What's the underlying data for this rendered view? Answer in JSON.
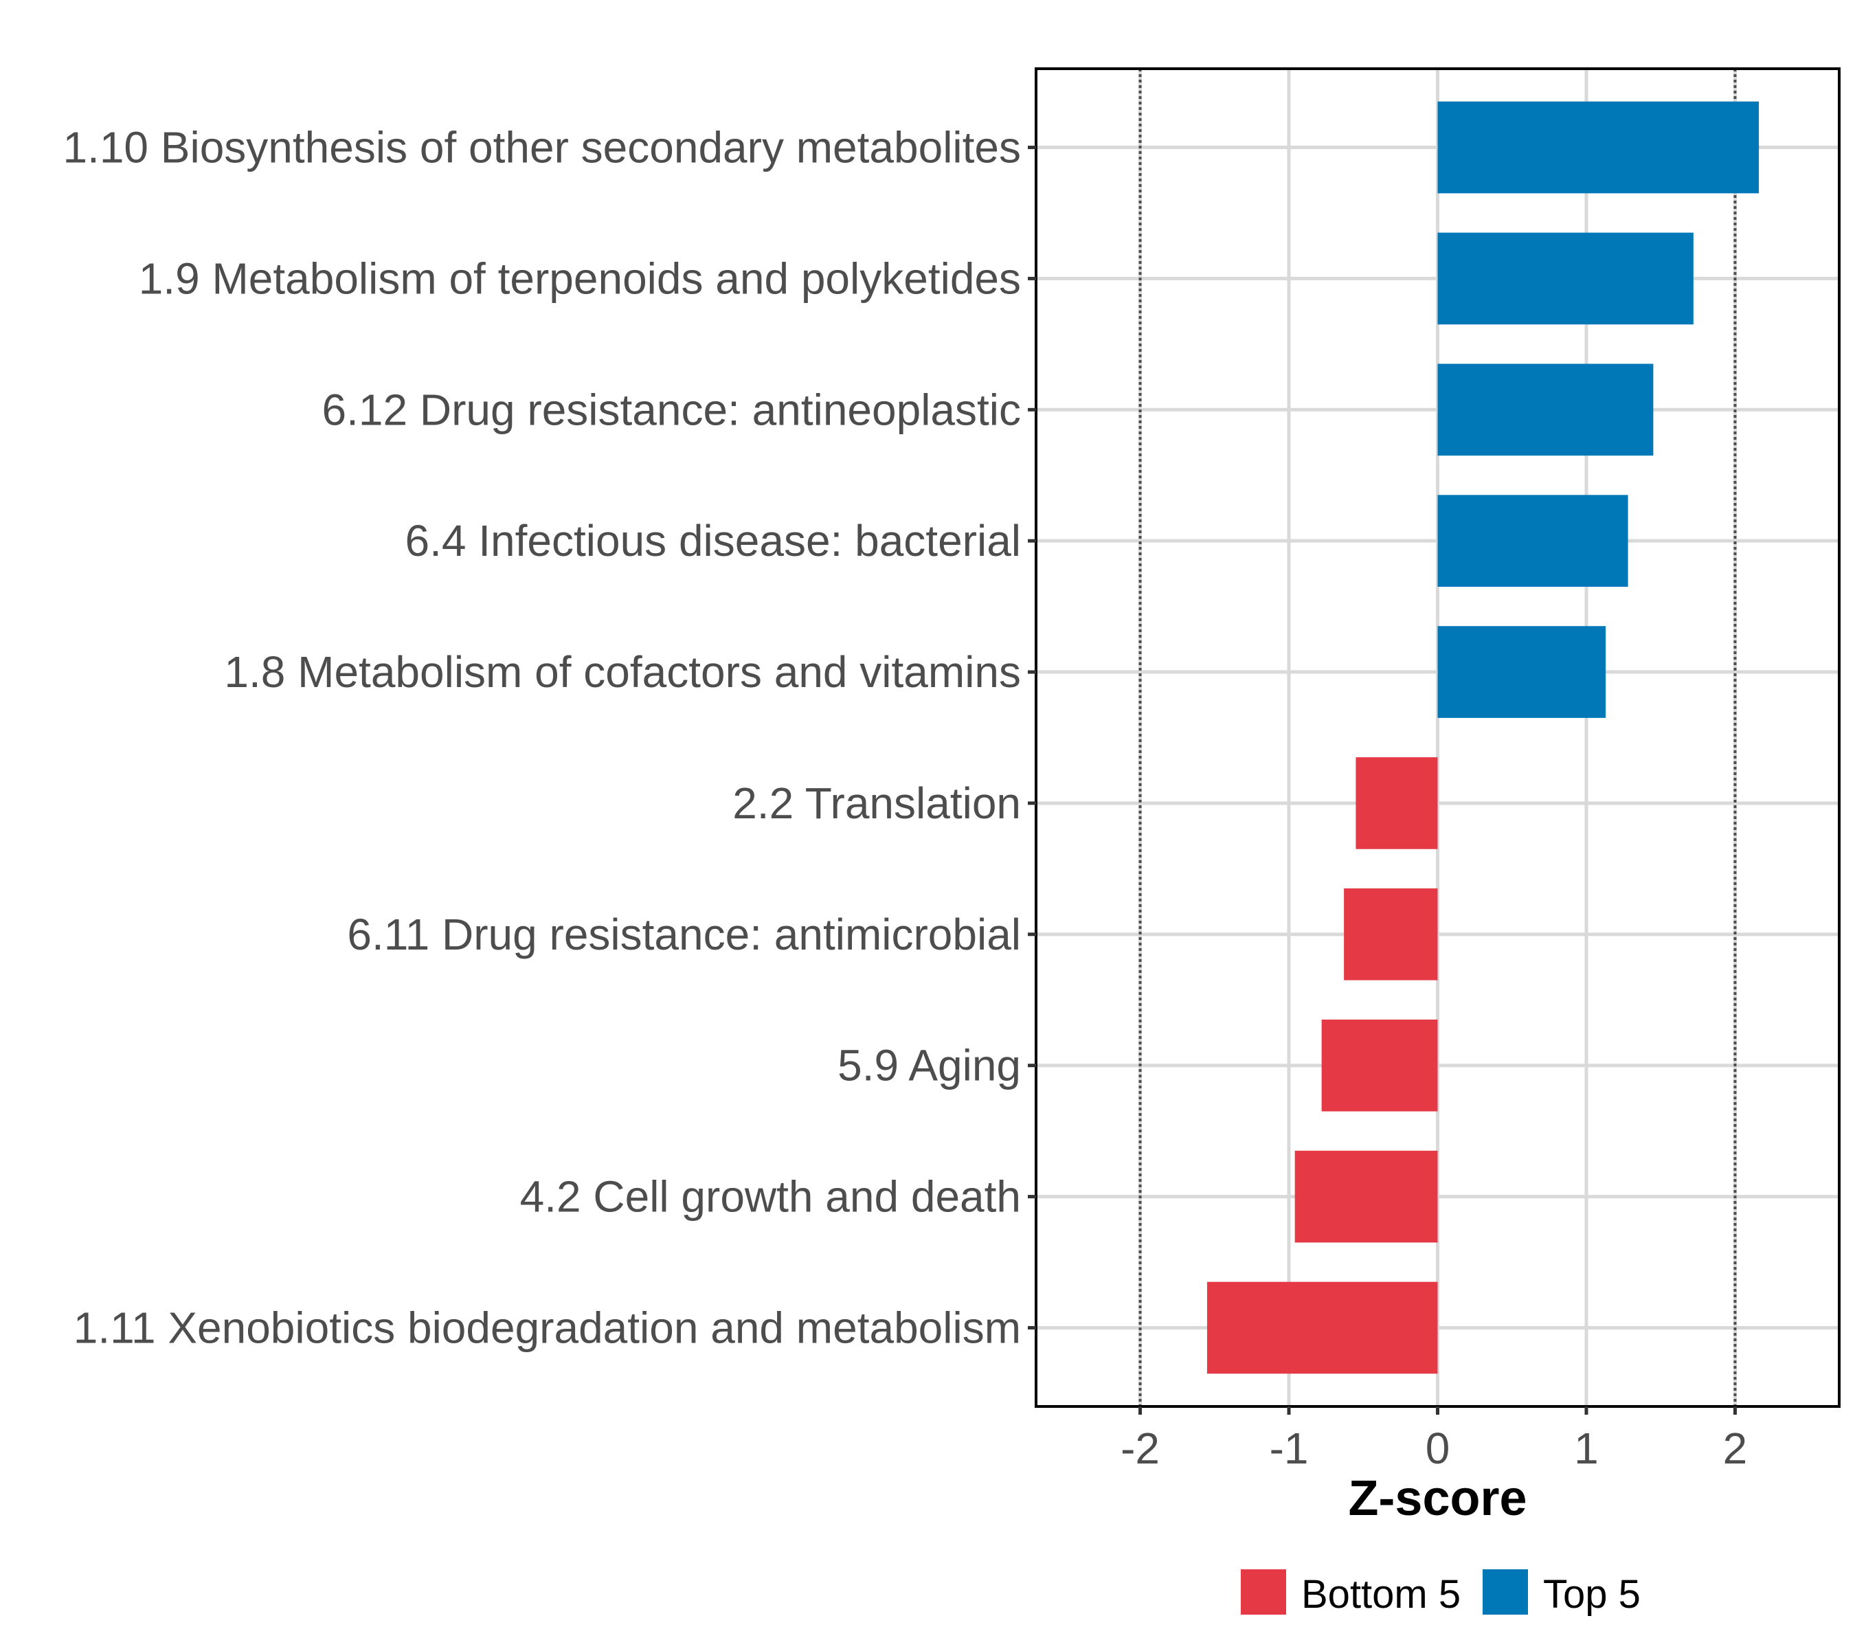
{
  "chart_data": {
    "type": "bar",
    "orientation": "horizontal",
    "title": "",
    "xlabel": "Z-score",
    "ylabel": "",
    "xlim": [
      -2.7,
      2.7
    ],
    "xticks": [
      -2,
      -1,
      0,
      1,
      2
    ],
    "xtick_labels": [
      "-2",
      "-1",
      "0",
      "1",
      "2"
    ],
    "reference_lines": [
      -2,
      2
    ],
    "grid": true,
    "categories": [
      "1.10 Biosynthesis of other secondary metabolites",
      "1.9 Metabolism of terpenoids and polyketides",
      "6.12 Drug resistance: antineoplastic",
      "6.4 Infectious disease: bacterial",
      "1.8 Metabolism of cofactors and vitamins",
      "2.2 Translation",
      "6.11 Drug resistance: antimicrobial",
      "5.9 Aging",
      "4.2 Cell growth and death",
      "1.11 Xenobiotics biodegradation and metabolism"
    ],
    "values": [
      2.16,
      1.72,
      1.45,
      1.28,
      1.13,
      -0.55,
      -0.63,
      -0.78,
      -0.96,
      -1.55
    ],
    "groups": [
      "Top 5",
      "Top 5",
      "Top 5",
      "Top 5",
      "Top 5",
      "Bottom 5",
      "Bottom 5",
      "Bottom 5",
      "Bottom 5",
      "Bottom 5"
    ],
    "legend": {
      "position": "bottom",
      "entries": [
        {
          "label": "Bottom 5",
          "color": "#E63946"
        },
        {
          "label": "Top 5",
          "color": "#0077B6"
        }
      ]
    },
    "colors": {
      "Top 5": "#0077B6",
      "Bottom 5": "#E63946"
    }
  }
}
